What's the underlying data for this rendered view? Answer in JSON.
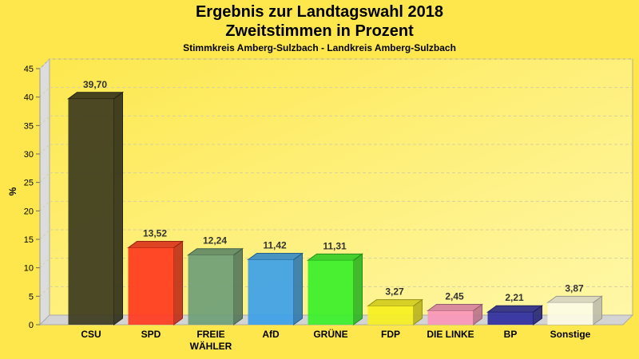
{
  "chart_data": {
    "type": "bar",
    "title": "Ergebnis zur Landtagswahl 2018",
    "subtitle": "Zweitstimmen in Prozent",
    "caption": "Stimmkreis Amberg-Sulzbach - Landkreis Amberg-Sulzbach",
    "ylabel": "%",
    "xlabel": "",
    "ylim": [
      0,
      45
    ],
    "yticks": [
      0,
      5,
      10,
      15,
      20,
      25,
      30,
      35,
      40,
      45
    ],
    "grid": true,
    "categories": [
      "CSU",
      "SPD",
      "FREIE WÄHLER",
      "AfD",
      "GRÜNE",
      "FDP",
      "DIE LINKE",
      "BP",
      "Sonstige"
    ],
    "values": [
      39.7,
      13.52,
      12.24,
      11.42,
      11.31,
      3.27,
      2.45,
      2.21,
      3.87
    ],
    "value_labels": [
      "39,70",
      "13,52",
      "12,24",
      "11,42",
      "11,31",
      "3,27",
      "2,45",
      "2,21",
      "3,87"
    ],
    "colors": [
      "#3c3a1e",
      "#ff3a1e",
      "#6e9e78",
      "#3da0e8",
      "#3af02a",
      "#f6f020",
      "#f896b8",
      "#2e2e9e",
      "#fdfbe4"
    ]
  }
}
